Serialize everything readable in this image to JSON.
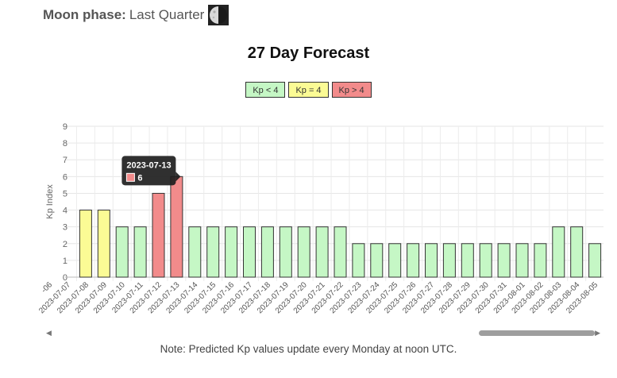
{
  "moon": {
    "label": "Moon phase:",
    "value": "Last Quarter",
    "icon": "moon-last-quarter-icon"
  },
  "title": "27 Day Forecast",
  "legend": [
    {
      "label": "Kp < 4",
      "color": "#c5f7c5",
      "border": "#333333"
    },
    {
      "label": "Kp = 4",
      "color": "#fbfb95",
      "border": "#333333"
    },
    {
      "label": "Kp > 4",
      "color": "#f28b8b",
      "border": "#333333"
    }
  ],
  "tooltip": {
    "date": "2023-07-13",
    "value": "6"
  },
  "note": "Note: Predicted Kp values update every Monday at noon UTC.",
  "scroll": {
    "left_icon": "scroll-left-arrow-icon",
    "right_icon": "scroll-right-arrow-icon"
  },
  "chart_data": {
    "type": "bar",
    "title": "",
    "xlabel": "",
    "ylabel": "Kp Index",
    "ylim": [
      0,
      9
    ],
    "yticks": [
      0,
      1,
      2,
      3,
      4,
      5,
      6,
      7,
      8,
      9
    ],
    "grid": true,
    "partial_left_label": "-06",
    "categories": [
      "2023-07-07",
      "2023-07-08",
      "2023-07-09",
      "2023-07-10",
      "2023-07-11",
      "2023-07-12",
      "2023-07-13",
      "2023-07-14",
      "2023-07-15",
      "2023-07-16",
      "2023-07-17",
      "2023-07-18",
      "2023-07-19",
      "2023-07-20",
      "2023-07-21",
      "2023-07-22",
      "2023-07-23",
      "2023-07-24",
      "2023-07-25",
      "2023-07-26",
      "2023-07-27",
      "2023-07-28",
      "2023-07-29",
      "2023-07-30",
      "2023-07-31",
      "2023-08-01",
      "2023-08-02",
      "2023-08-03",
      "2023-08-04",
      "2023-08-05"
    ],
    "values": [
      null,
      4,
      4,
      3,
      3,
      5,
      6,
      3,
      3,
      3,
      3,
      3,
      3,
      3,
      3,
      3,
      2,
      2,
      2,
      2,
      2,
      2,
      2,
      2,
      2,
      2,
      2,
      3,
      3,
      2
    ],
    "colors": {
      "low": "#c5f7c5",
      "mid": "#fbfb95",
      "high": "#f28b8b",
      "stroke": "#333333"
    }
  }
}
